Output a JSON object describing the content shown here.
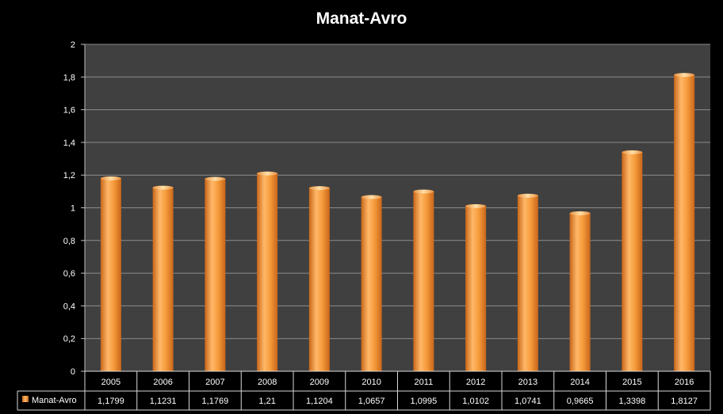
{
  "chart_data": {
    "type": "bar",
    "title": "Manat-Avro",
    "categories": [
      "2005",
      "2006",
      "2007",
      "2008",
      "2009",
      "2010",
      "2011",
      "2012",
      "2013",
      "2014",
      "2015",
      "2016"
    ],
    "series": [
      {
        "name": "Manat-Avro",
        "values": [
          1.1799,
          1.1231,
          1.1769,
          1.21,
          1.1204,
          1.0657,
          1.0995,
          1.0102,
          1.0741,
          0.9665,
          1.3398,
          1.8127
        ],
        "value_labels": [
          "1,1799",
          "1,1231",
          "1,1769",
          "1,21",
          "1,1204",
          "1,0657",
          "1,0995",
          "1,0102",
          "1,0741",
          "0,9665",
          "1,3398",
          "1,8127"
        ]
      }
    ],
    "y_ticks": [
      "0",
      "0,2",
      "0,4",
      "0,6",
      "0,8",
      "1",
      "1,2",
      "1,4",
      "1,6",
      "1,8",
      "2"
    ],
    "ylim": [
      0,
      2
    ],
    "grid": true,
    "legend": "data-table",
    "colors": {
      "bar": "#f0902a",
      "bar_light": "#ffc47a",
      "bar_dark": "#c8661a",
      "plot_bg": "#404040",
      "grid": "#8c8c8c",
      "page_bg": "#000000",
      "text": "#ffffff"
    }
  }
}
